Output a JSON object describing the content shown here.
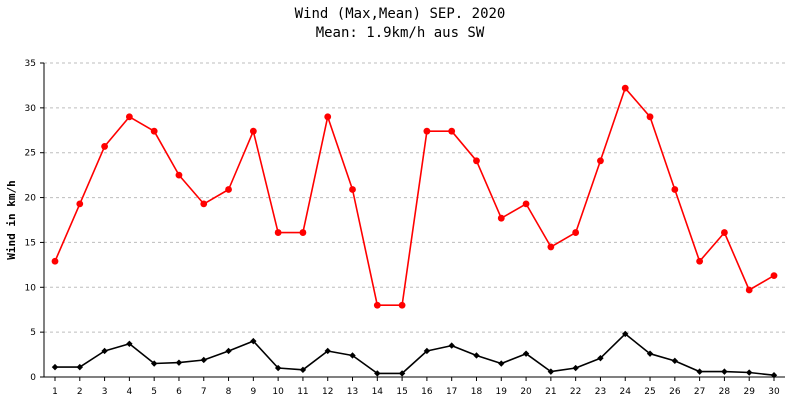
{
  "chart_data": {
    "type": "line",
    "title": "Wind (Max,Mean) SEP. 2020",
    "subtitle": "Mean: 1.9km/h aus SW",
    "xlabel": "",
    "ylabel": "Wind in km/h",
    "ylim": [
      0,
      35
    ],
    "yticks": [
      0,
      5,
      10,
      15,
      20,
      25,
      30,
      35
    ],
    "grid": true,
    "legend": "none",
    "x": [
      1,
      2,
      3,
      4,
      5,
      6,
      7,
      8,
      9,
      10,
      11,
      12,
      13,
      14,
      15,
      16,
      17,
      18,
      19,
      20,
      21,
      22,
      23,
      24,
      25,
      26,
      27,
      28,
      29,
      30
    ],
    "series": [
      {
        "color": "#ff0000",
        "marker": "circle",
        "values": [
          12.9,
          19.3,
          25.7,
          29.0,
          27.4,
          22.5,
          19.3,
          20.9,
          27.4,
          16.1,
          16.1,
          29.0,
          20.9,
          8.0,
          8.0,
          27.4,
          27.4,
          24.1,
          17.7,
          19.3,
          14.5,
          16.1,
          24.1,
          32.2,
          29.0,
          20.9,
          12.9,
          16.1,
          9.7,
          11.3
        ]
      },
      {
        "color": "#000000",
        "marker": "diamond",
        "values": [
          1.1,
          1.1,
          2.9,
          3.7,
          1.5,
          1.6,
          1.9,
          2.9,
          4.0,
          1.0,
          0.8,
          2.9,
          2.4,
          0.4,
          0.4,
          2.9,
          3.5,
          2.4,
          1.5,
          2.6,
          0.6,
          1.0,
          2.1,
          4.8,
          2.6,
          1.8,
          0.6,
          0.6,
          0.5,
          0.2
        ]
      }
    ]
  }
}
